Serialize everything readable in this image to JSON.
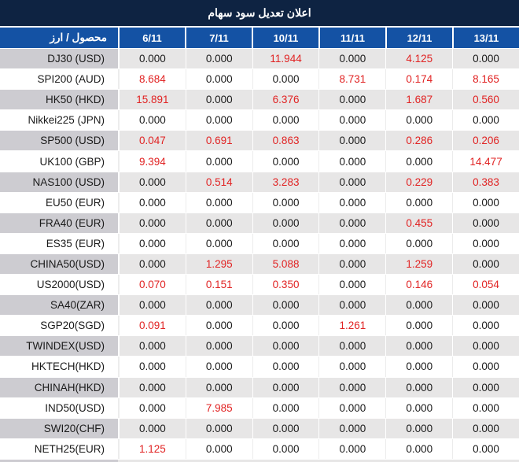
{
  "chart_data": {
    "type": "table",
    "title": "اعلان تعديل سود سهام",
    "row_header_label": "محصول / ارز",
    "columns": [
      "6/11",
      "7/11",
      "10/11",
      "11/11",
      "12/11",
      "13/11"
    ],
    "rows": [
      {
        "label": "DJ30 (USD)",
        "values": [
          "0.000",
          "0.000",
          "11.944",
          "0.000",
          "4.125",
          "0.000"
        ]
      },
      {
        "label": "SPI200 (AUD)",
        "values": [
          "8.684",
          "0.000",
          "0.000",
          "8.731",
          "0.174",
          "8.165"
        ]
      },
      {
        "label": "HK50 (HKD)",
        "values": [
          "15.891",
          "0.000",
          "6.376",
          "0.000",
          "1.687",
          "0.560"
        ]
      },
      {
        "label": "Nikkei225 (JPN)",
        "values": [
          "0.000",
          "0.000",
          "0.000",
          "0.000",
          "0.000",
          "0.000"
        ]
      },
      {
        "label": "SP500 (USD)",
        "values": [
          "0.047",
          "0.691",
          "0.863",
          "0.000",
          "0.286",
          "0.206"
        ]
      },
      {
        "label": "UK100 (GBP)",
        "values": [
          "9.394",
          "0.000",
          "0.000",
          "0.000",
          "0.000",
          "14.477"
        ]
      },
      {
        "label": "NAS100 (USD)",
        "values": [
          "0.000",
          "0.514",
          "3.283",
          "0.000",
          "0.229",
          "0.383"
        ]
      },
      {
        "label": "EU50 (EUR)",
        "values": [
          "0.000",
          "0.000",
          "0.000",
          "0.000",
          "0.000",
          "0.000"
        ]
      },
      {
        "label": "FRA40 (EUR)",
        "values": [
          "0.000",
          "0.000",
          "0.000",
          "0.000",
          "0.455",
          "0.000"
        ]
      },
      {
        "label": "ES35 (EUR)",
        "values": [
          "0.000",
          "0.000",
          "0.000",
          "0.000",
          "0.000",
          "0.000"
        ]
      },
      {
        "label": "CHINA50(USD)",
        "values": [
          "0.000",
          "1.295",
          "5.088",
          "0.000",
          "1.259",
          "0.000"
        ]
      },
      {
        "label": "US2000(USD)",
        "values": [
          "0.070",
          "0.151",
          "0.350",
          "0.000",
          "0.146",
          "0.054"
        ]
      },
      {
        "label": "SA40(ZAR)",
        "values": [
          "0.000",
          "0.000",
          "0.000",
          "0.000",
          "0.000",
          "0.000"
        ]
      },
      {
        "label": "SGP20(SGD)",
        "values": [
          "0.091",
          "0.000",
          "0.000",
          "1.261",
          "0.000",
          "0.000"
        ]
      },
      {
        "label": "TWINDEX(USD)",
        "values": [
          "0.000",
          "0.000",
          "0.000",
          "0.000",
          "0.000",
          "0.000"
        ]
      },
      {
        "label": "HKTECH(HKD)",
        "values": [
          "0.000",
          "0.000",
          "0.000",
          "0.000",
          "0.000",
          "0.000"
        ]
      },
      {
        "label": "CHINAH(HKD)",
        "values": [
          "0.000",
          "0.000",
          "0.000",
          "0.000",
          "0.000",
          "0.000"
        ]
      },
      {
        "label": "IND50(USD)",
        "values": [
          "0.000",
          "7.985",
          "0.000",
          "0.000",
          "0.000",
          "0.000"
        ]
      },
      {
        "label": "SWI20(CHF)",
        "values": [
          "0.000",
          "0.000",
          "0.000",
          "0.000",
          "0.000",
          "0.000"
        ]
      },
      {
        "label": "NETH25(EUR)",
        "values": [
          "1.125",
          "0.000",
          "0.000",
          "0.000",
          "0.000",
          "0.000"
        ]
      }
    ],
    "legend_note": "non-zero values rendered in red, zero values in black",
    "layout": {
      "zebra_striping": true,
      "first_data_row_shade": "gray"
    }
  },
  "colors": {
    "title_bg": "#0e2342",
    "header_bg": "#1452a4",
    "header_text": "#ffffff",
    "gray_row_bg": "#e7e6e6",
    "gray_label_bg": "#cdccd1",
    "value_text": "#1a1a1a",
    "highlight_text": "#e12323",
    "grid_white": "#ffffff",
    "grid_light": "#ececec"
  }
}
